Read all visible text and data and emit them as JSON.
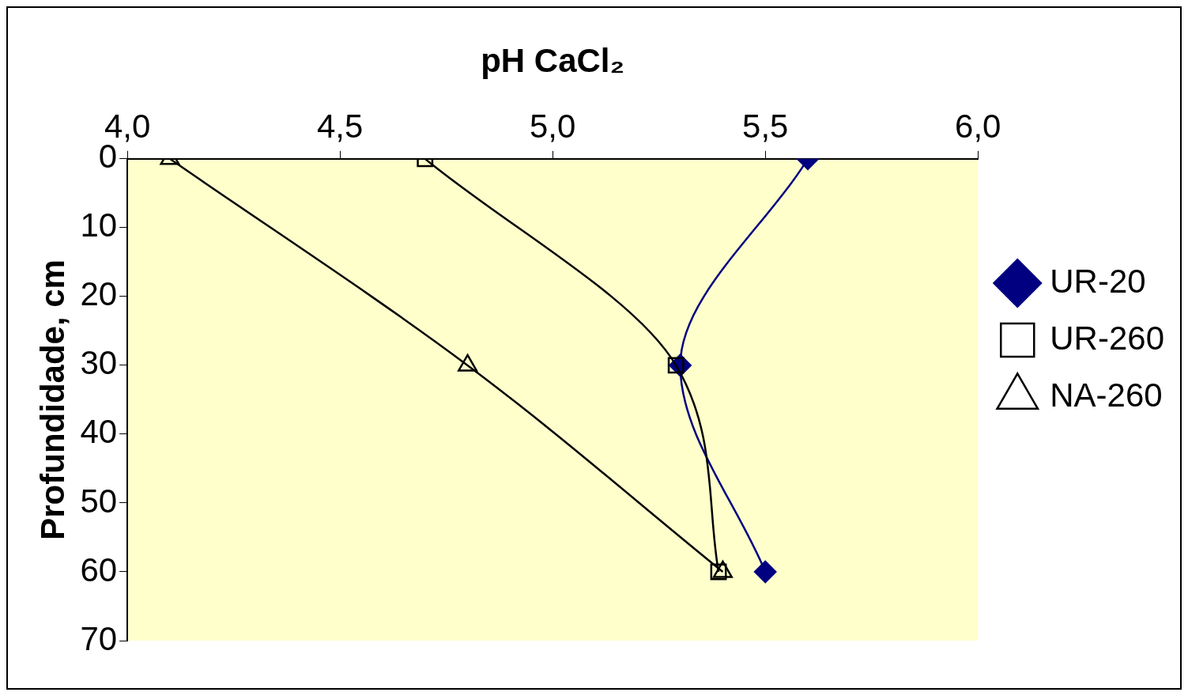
{
  "chart_data": {
    "type": "line",
    "xlabel": "pH CaCl₂",
    "ylabel": "Profundidade, cm",
    "xlim": [
      4,
      6
    ],
    "xticks": [
      {
        "value": 4,
        "label": "4,0"
      },
      {
        "value": 4.5,
        "label": "4,5"
      },
      {
        "value": 5,
        "label": "5,0"
      },
      {
        "value": 5.5,
        "label": "5,5"
      },
      {
        "value": 6,
        "label": "6,0"
      }
    ],
    "ylim": [
      70,
      0
    ],
    "yticks": [
      0,
      10,
      20,
      30,
      40,
      50,
      60,
      70
    ],
    "grid": false,
    "legend": "right",
    "line_style": "solid",
    "series": [
      {
        "name": "UR-20",
        "color": "#000080",
        "marker": "diamond",
        "x": [
          5.6,
          5.3,
          5.5
        ],
        "values": [
          0,
          30,
          60
        ]
      },
      {
        "name": "UR-260",
        "color": "#000000",
        "marker": "square",
        "x": [
          4.7,
          5.29,
          5.39
        ],
        "values": [
          0,
          30,
          60
        ]
      },
      {
        "name": "NA-260",
        "color": "#000000",
        "marker": "triangle",
        "x": [
          4.1,
          4.8,
          5.4
        ],
        "values": [
          0,
          30,
          60
        ]
      }
    ]
  }
}
